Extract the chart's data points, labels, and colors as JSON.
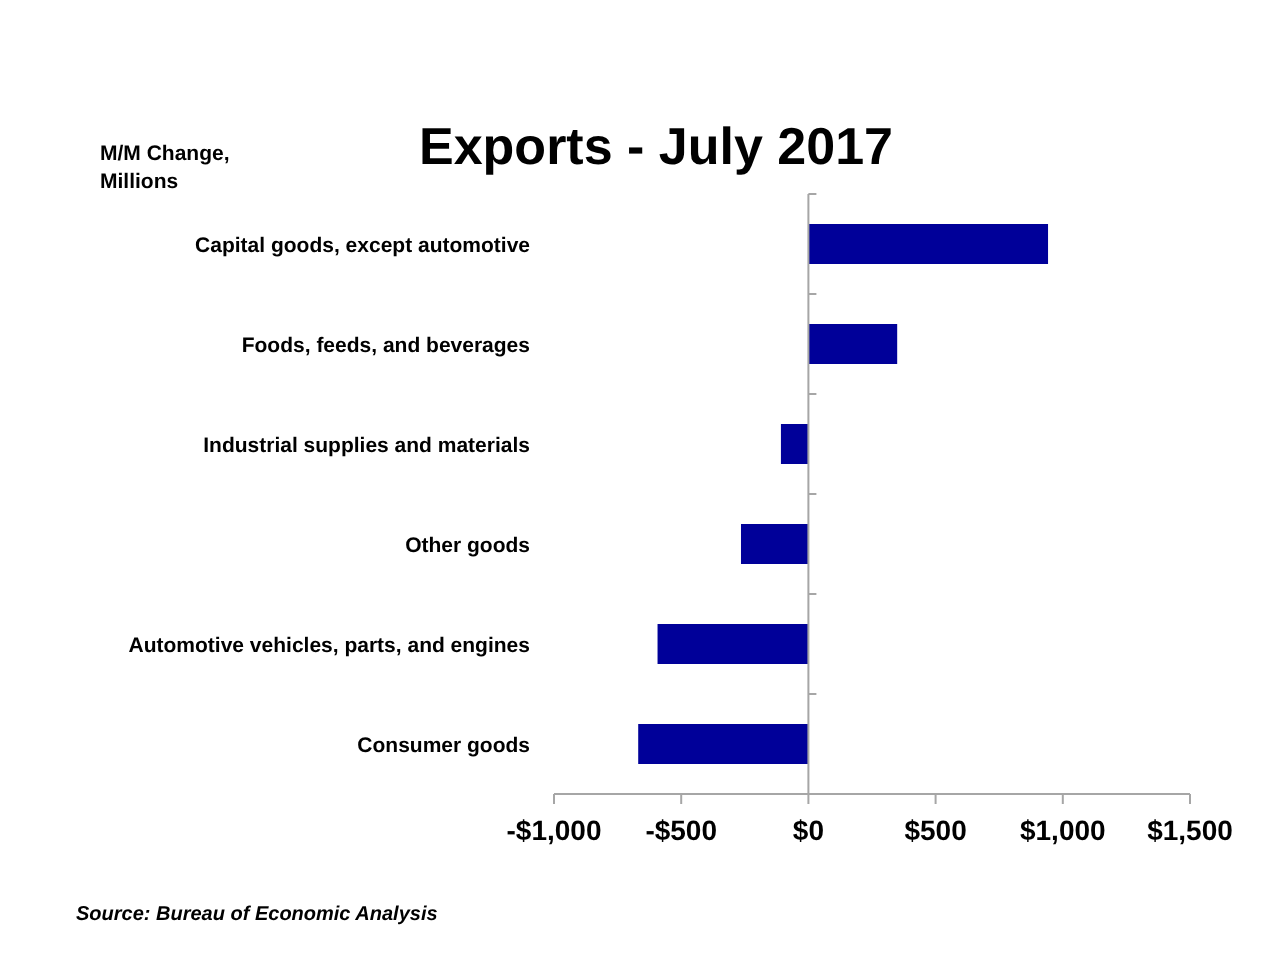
{
  "chart_data": {
    "type": "bar",
    "orientation": "horizontal",
    "title": "Exports - July 2017",
    "ylabel": "M/M Change, Millions",
    "categories": [
      "Capital goods, except automotive",
      "Foods, feeds, and beverages",
      "Industrial supplies and materials",
      "Other goods",
      "Automotive vehicles, parts, and engines",
      "Consumer goods"
    ],
    "values": [
      942,
      349,
      -108,
      -265,
      -593,
      -669
    ],
    "color": "#000099",
    "xlim": [
      -1000,
      1500
    ],
    "xticks": [
      {
        "value": -1000,
        "label": "-$1,000"
      },
      {
        "value": -500,
        "label": "-$500"
      },
      {
        "value": 0,
        "label": "$0"
      },
      {
        "value": 500,
        "label": "$500"
      },
      {
        "value": 1000,
        "label": "$1,000"
      },
      {
        "value": 1500,
        "label": "$1,500"
      }
    ],
    "annotations": [
      "Source: Bureau of Economic Analysis"
    ]
  }
}
